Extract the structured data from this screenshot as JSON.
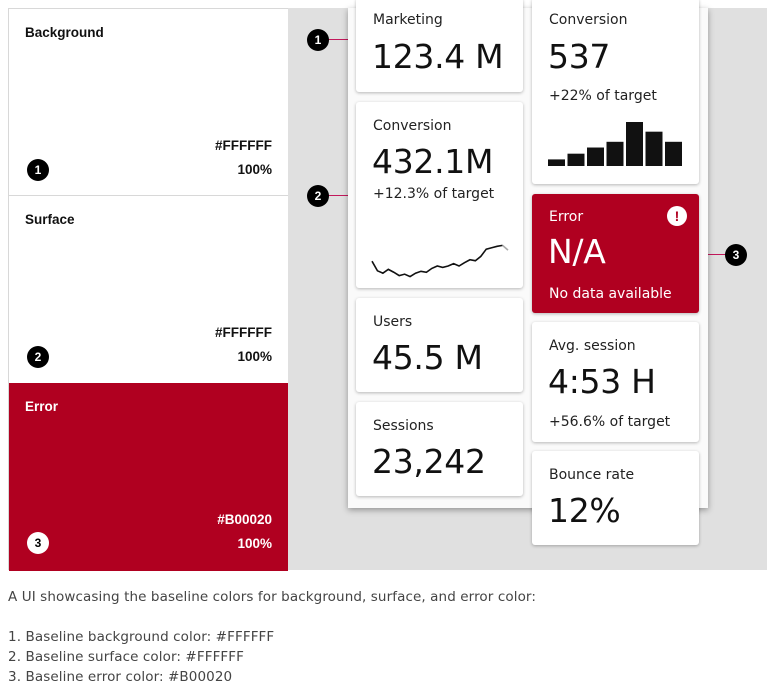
{
  "swatches": [
    {
      "name": "Background",
      "hex": "#FFFFFF",
      "opacity": "100%",
      "number": "1"
    },
    {
      "name": "Surface",
      "hex": "#FFFFFF",
      "opacity": "100%",
      "number": "2"
    },
    {
      "name": "Error",
      "hex": "#B00020",
      "opacity": "100%",
      "number": "3"
    }
  ],
  "cards": {
    "marketing": {
      "title": "Marketing",
      "value": "123.4 M"
    },
    "conversion_trend": {
      "title": "Conversion",
      "value": "432.1M",
      "sub": "+12.3% of target"
    },
    "users": {
      "title": "Users",
      "value": "45.5 M"
    },
    "sessions": {
      "title": "Sessions",
      "value": "23,242"
    },
    "conversion_bar": {
      "title": "Conversion",
      "value": "537",
      "sub": "+22% of target"
    },
    "error": {
      "title": "Error",
      "value": "N/A",
      "sub": "No data available",
      "icon": "!"
    },
    "avg_session": {
      "title": "Avg. session",
      "value": "4:53 H",
      "sub": "+56.6% of target"
    },
    "bounce": {
      "title": "Bounce rate",
      "value": "12%"
    }
  },
  "sparkline": [
    0.35,
    0.15,
    0.1,
    0.18,
    0.12,
    0.05,
    0.08,
    0.03,
    0.1,
    0.14,
    0.12,
    0.2,
    0.25,
    0.22,
    0.25,
    0.3,
    0.25,
    0.32,
    0.38,
    0.36,
    0.45,
    0.6,
    0.63,
    0.66,
    0.68,
    0.58
  ],
  "bar_values": [
    0.15,
    0.28,
    0.42,
    0.55,
    1.0,
    0.78,
    0.55
  ],
  "callouts": [
    "1",
    "2",
    "3"
  ],
  "caption": {
    "intro": "A UI showcasing the baseline colors for background, surface, and error color:",
    "items": [
      "1. Baseline background color: #FFFFFF",
      "2. Baseline surface color: #FFFFFF",
      "3. Baseline error color: #B00020"
    ]
  },
  "colors": {
    "error": "#B00020",
    "surface": "#FFFFFF",
    "background": "#FFFFFF"
  }
}
